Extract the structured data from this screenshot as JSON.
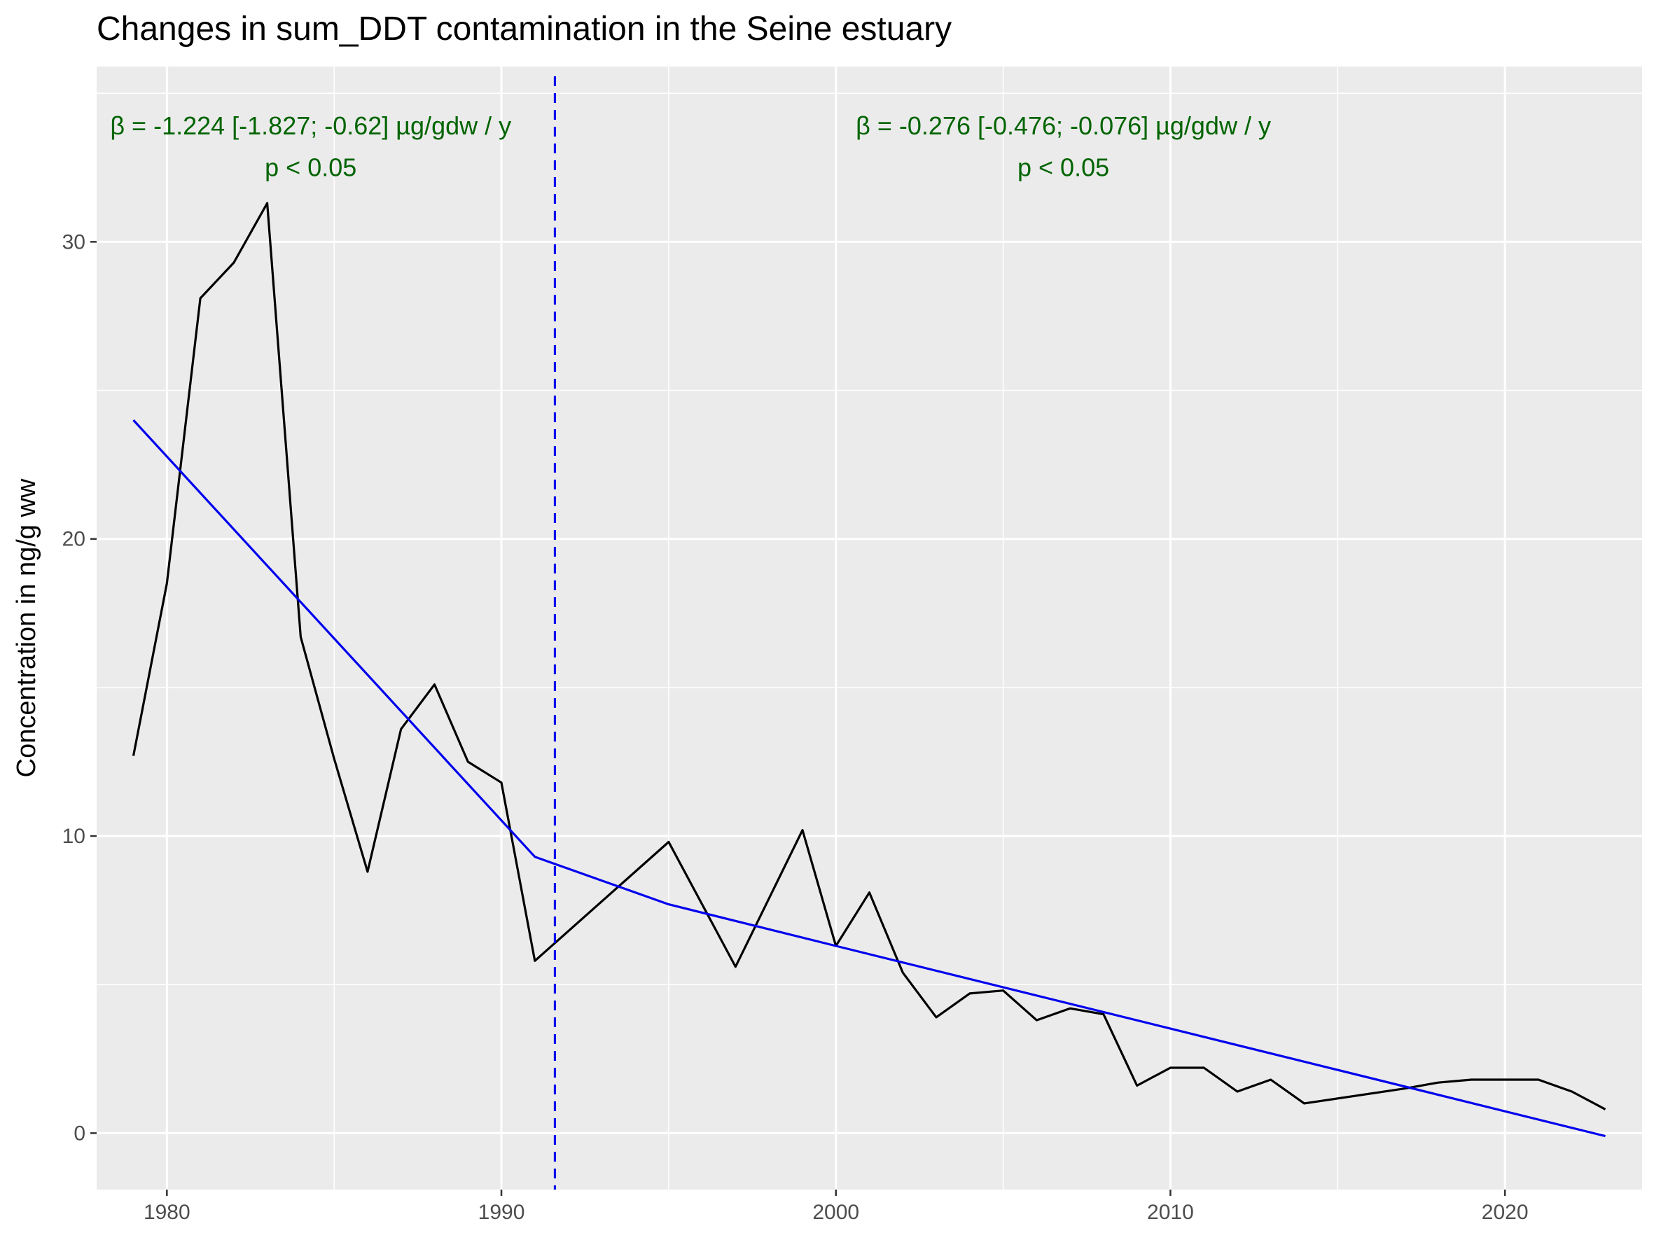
{
  "chart_data": {
    "type": "line",
    "title": "Changes in sum_DDT contamination in the Seine estuary",
    "xlabel": "",
    "ylabel": "Concentration in ng/g ww",
    "xlim": [
      1977.9,
      2024.1
    ],
    "ylim": [
      -1.9,
      35.9
    ],
    "x_ticks": [
      1980,
      1990,
      2000,
      2010,
      2020
    ],
    "x_minor": [
      1985,
      1995,
      2005,
      2015
    ],
    "y_ticks": [
      0,
      10,
      20,
      30
    ],
    "y_minor": [
      5,
      15,
      25,
      35
    ],
    "grid": true,
    "legend": "none",
    "colors": {
      "panel": "#ebebeb",
      "grid": "#ffffff",
      "observed": "#000000",
      "trend": "#0000ee",
      "annotation": "#006400"
    },
    "series": [
      {
        "x": [
          1979,
          1980,
          1981,
          1982,
          1983,
          1984,
          1985,
          1986,
          1987,
          1988,
          1989,
          1990,
          1991,
          1995,
          1997,
          1999,
          2000,
          2001,
          2002,
          2003,
          2004,
          2005,
          2006,
          2007,
          2008,
          2009,
          2010,
          2011,
          2012,
          2013,
          2014,
          2017,
          2018,
          2019,
          2020,
          2021,
          2022,
          2023
        ],
        "y": [
          12.7,
          18.5,
          28.1,
          29.3,
          31.3,
          16.7,
          12.6,
          8.8,
          13.6,
          15.1,
          12.5,
          11.8,
          5.8,
          9.8,
          5.6,
          10.2,
          6.3,
          8.1,
          5.4,
          3.9,
          4.7,
          4.8,
          3.8,
          4.2,
          4.0,
          1.6,
          2.2,
          2.2,
          1.4,
          1.8,
          1.0,
          1.5,
          1.7,
          1.8,
          1.8,
          1.8,
          1.4,
          0.8
        ]
      },
      {
        "x": [
          1979,
          1991,
          1995,
          2000,
          2023
        ],
        "y": [
          24.0,
          9.3,
          7.7,
          6.3,
          -0.1
        ]
      }
    ],
    "breakpoint_x": 1991.6,
    "annotations": [
      {
        "text": "β = -1.224 [-1.827; -0.62] µg/gdw / y",
        "x": 1984.3,
        "y": 33.9
      },
      {
        "text": "p < 0.05",
        "x": 1984.3,
        "y": 32.5
      },
      {
        "text": "β = -0.276 [-0.476; -0.076] µg/gdw / y",
        "x": 2006.8,
        "y": 33.9
      },
      {
        "text": "p < 0.05",
        "x": 2006.8,
        "y": 32.5
      }
    ]
  }
}
